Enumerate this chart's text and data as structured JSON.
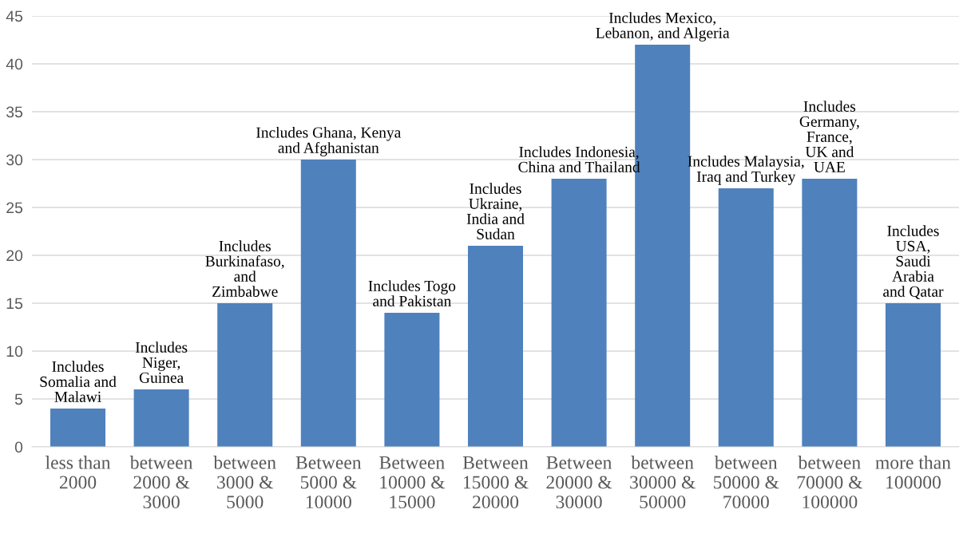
{
  "chart_data": {
    "type": "bar",
    "categories": [
      "less than\n2000",
      "between\n2000 &\n3000",
      "between\n3000 &\n5000",
      "Between\n5000 &\n10000",
      "Between\n10000 &\n15000",
      "Between\n15000 &\n20000",
      "Between\n20000 &\n30000",
      "between\n30000 &\n50000",
      "between\n50000 &\n70000",
      "between\n70000 &\n100000",
      "more than\n100000"
    ],
    "values": [
      4,
      6,
      15,
      30,
      14,
      21,
      28,
      42,
      27,
      28,
      15
    ],
    "color": "#4f81bd",
    "ylim": [
      0,
      45
    ],
    "yticks": [
      0,
      5,
      10,
      15,
      20,
      25,
      30,
      35,
      40,
      45
    ],
    "grid": "y",
    "annotations": [
      {
        "text": "Includes\nSomalia and\nMalawi",
        "x": "less than\n2000",
        "y": 4
      },
      {
        "text": "Includes\nNiger,\nGuinea",
        "x": "between\n2000 &\n3000",
        "y": 6
      },
      {
        "text": "Includes\nBurkinafaso,\nand\nZimbabwe",
        "x": "between\n3000 &\n5000",
        "y": 15
      },
      {
        "text": "Includes Ghana, Kenya\nand Afghanistan",
        "x": "Between\n5000 &\n10000",
        "y": 30
      },
      {
        "text": "Includes Togo\nand Pakistan",
        "x": "Between\n10000 &\n15000",
        "y": 14
      },
      {
        "text": "Includes\nUkraine,\nIndia and\nSudan",
        "x": "Between\n15000 &\n20000",
        "y": 21
      },
      {
        "text": "Includes Indonesia,\nChina and Thailand",
        "x": "Between\n20000 &\n30000",
        "y": 28
      },
      {
        "text": "Includes Mexico,\nLebanon, and Algeria",
        "x": "between\n30000 &\n50000",
        "y": 42
      },
      {
        "text": "Includes Malaysia,\nIraq and Turkey",
        "x": "between\n50000 &\n70000",
        "y": 27
      },
      {
        "text": "Includes\nGermany,\nFrance,\nUK and\nUAE",
        "x": "between\n70000 &\n100000",
        "y": 28
      },
      {
        "text": "Includes\nUSA,\nSaudi\nArabia\nand Qatar",
        "x": "more than\n100000",
        "y": 15
      }
    ]
  }
}
